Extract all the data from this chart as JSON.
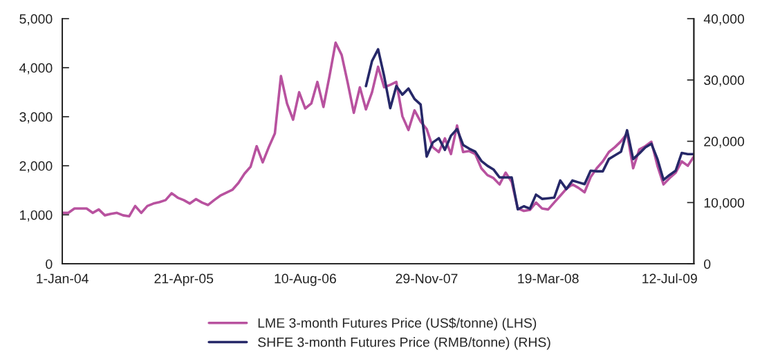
{
  "chart_data": {
    "type": "line",
    "categories": [
      "1-Jan-04",
      null,
      null,
      null,
      null,
      null,
      null,
      null,
      null,
      null,
      null,
      null,
      null,
      null,
      null,
      null,
      null,
      null,
      null,
      null,
      "21-Apr-05",
      null,
      null,
      null,
      null,
      null,
      null,
      null,
      null,
      null,
      null,
      null,
      null,
      null,
      null,
      null,
      null,
      null,
      null,
      null,
      "10-Aug-06",
      null,
      null,
      null,
      null,
      null,
      null,
      null,
      null,
      null,
      null,
      null,
      null,
      null,
      null,
      null,
      null,
      null,
      null,
      null,
      "29-Nov-07",
      null,
      null,
      null,
      null,
      null,
      null,
      null,
      null,
      null,
      null,
      null,
      null,
      null,
      null,
      null,
      null,
      null,
      null,
      null,
      "19-Mar-08",
      null,
      null,
      null,
      null,
      null,
      null,
      null,
      null,
      null,
      null,
      null,
      null,
      null,
      null,
      null,
      null,
      null,
      null,
      null,
      "12-Jul-09",
      null,
      null,
      null,
      null
    ],
    "ylim": [
      0,
      5000
    ],
    "yticks": [
      {
        "value": 0,
        "label": "0"
      },
      {
        "value": 1000,
        "label": "1,000"
      },
      {
        "value": 2000,
        "label": "2,000"
      },
      {
        "value": 3000,
        "label": "3,000"
      },
      {
        "value": 4000,
        "label": "4,000"
      },
      {
        "value": 5000,
        "label": "5,000"
      }
    ],
    "y2lim": [
      0,
      40000
    ],
    "y2ticks": [
      {
        "value": 0,
        "label": "0"
      },
      {
        "value": 10000,
        "label": "10,000"
      },
      {
        "value": 20000,
        "label": "20,000"
      },
      {
        "value": 30000,
        "label": "30,000"
      },
      {
        "value": 40000,
        "label": "40,000"
      }
    ],
    "legend": "bottom",
    "series": [
      {
        "name": "LME 3-month Futures Price (US$/tonne) (LHS)",
        "color": "#b8529f",
        "values": [
          1040,
          1040,
          1130,
          1130,
          1130,
          1040,
          1110,
          990,
          1020,
          1040,
          990,
          970,
          1180,
          1040,
          1180,
          1230,
          1260,
          1300,
          1440,
          1350,
          1300,
          1230,
          1320,
          1250,
          1200,
          1300,
          1390,
          1450,
          1510,
          1650,
          1840,
          1980,
          2400,
          2070,
          2380,
          2660,
          3830,
          3270,
          2940,
          3500,
          3170,
          3270,
          3710,
          3200,
          3830,
          4510,
          4260,
          3690,
          3080,
          3600,
          3150,
          3500,
          4020,
          3600,
          3650,
          3710,
          3010,
          2730,
          3130,
          2900,
          2750,
          2380,
          2280,
          2560,
          2240,
          2820,
          2280,
          2300,
          2240,
          1950,
          1810,
          1750,
          1620,
          1860,
          1670,
          1130,
          1080,
          1100,
          1250,
          1130,
          1110,
          1250,
          1390,
          1530,
          1620,
          1550,
          1460,
          1770,
          1950,
          2090,
          2280,
          2380,
          2500,
          2660,
          1950,
          2330,
          2400,
          2490,
          2000,
          1620,
          1750,
          1860,
          2090,
          2000,
          2190
        ]
      },
      {
        "name": "SHFE 3-month Futures Price (RMB/tonne) (RHS)",
        "color": "#262868",
        "axis": "y2",
        "values": [
          null,
          null,
          null,
          null,
          null,
          null,
          null,
          null,
          null,
          null,
          null,
          null,
          null,
          null,
          null,
          null,
          null,
          null,
          null,
          null,
          null,
          null,
          null,
          null,
          null,
          null,
          null,
          null,
          null,
          null,
          null,
          null,
          null,
          null,
          null,
          null,
          null,
          null,
          null,
          null,
          null,
          null,
          null,
          null,
          null,
          null,
          null,
          null,
          null,
          null,
          29000,
          33100,
          35000,
          30600,
          25400,
          29000,
          27600,
          28600,
          26900,
          26000,
          17500,
          19800,
          20500,
          18600,
          20900,
          22000,
          19400,
          18800,
          18300,
          16800,
          16000,
          15400,
          14100,
          14100,
          14100,
          8900,
          9400,
          9000,
          11300,
          10600,
          10700,
          10800,
          13600,
          12200,
          13600,
          13300,
          13000,
          15200,
          15100,
          15100,
          17100,
          17700,
          18300,
          21800,
          17100,
          18000,
          19000,
          19600,
          17100,
          13700,
          14500,
          15200,
          18100,
          17900,
          17900
        ]
      }
    ]
  }
}
